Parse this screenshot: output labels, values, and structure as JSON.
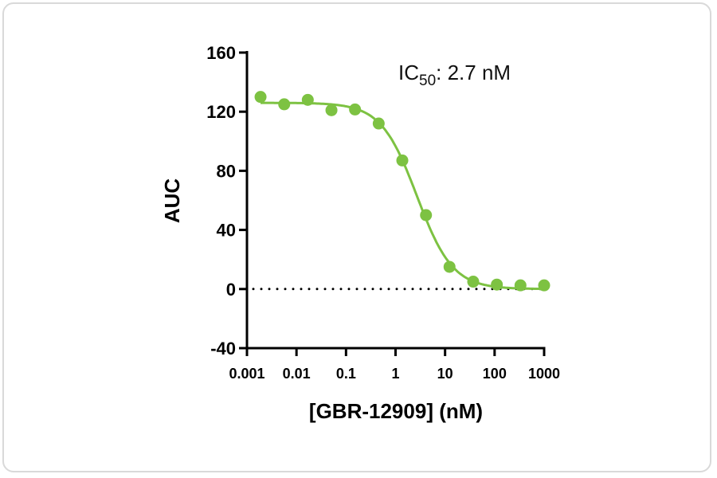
{
  "chart_data": {
    "type": "scatter",
    "xlabel": "[GBR-12909] (nM)",
    "ylabel": "AUC",
    "xscale": "log",
    "xlim": [
      0.001,
      1000
    ],
    "ylim": [
      -40,
      160
    ],
    "xticks": [
      "0.001",
      "0.01",
      "0.1",
      "1",
      "10",
      "100",
      "1000"
    ],
    "yticks": [
      "-40",
      "0",
      "40",
      "80",
      "120",
      "160"
    ],
    "annotation": {
      "prefix": "IC",
      "sub": "50",
      "suffix": ": 2.7 nM"
    },
    "color": "#7dc242",
    "grid": false,
    "reference_line": {
      "y": 0,
      "style": "dotted"
    },
    "series": [
      {
        "x": [
          0.00188,
          0.00565,
          0.0169,
          0.0508,
          0.152,
          0.457,
          1.37,
          4.12,
          12.3,
          37.0,
          111,
          333,
          1000
        ],
        "y": [
          130,
          125,
          128,
          121,
          121.5,
          112,
          87,
          50,
          15,
          5,
          3,
          2.5,
          2.5
        ]
      }
    ],
    "fit": {
      "model": "four-parameter logistic",
      "top": 126,
      "bottom": 0,
      "ic50": 2.7,
      "hill": 1.2
    }
  }
}
